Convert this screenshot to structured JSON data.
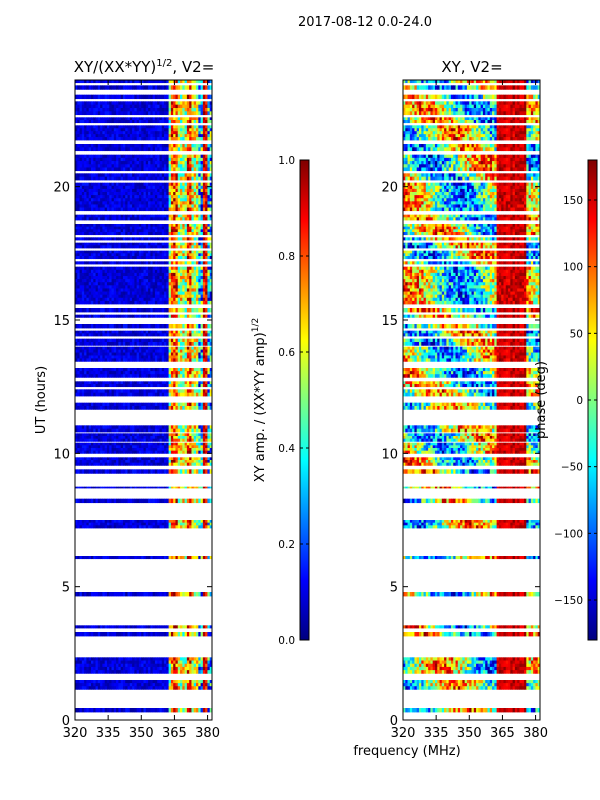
{
  "figure": {
    "suptitle": "2017-08-12 0.0-24.0",
    "shared_xlabel": "frequency (MHz)"
  },
  "chart_data": [
    {
      "type": "heatmap",
      "id": "amp",
      "title_main": "XY/(XX*YY)",
      "title_sup": "1/2",
      "title_tail": ", V2=",
      "ylabel": "UT (hours)",
      "xlim": [
        320,
        382
      ],
      "ylim": [
        0,
        24
      ],
      "xticks": [
        320,
        335,
        350,
        365,
        380
      ],
      "yticks": [
        0,
        5,
        10,
        15,
        20
      ],
      "background_value": 0.03,
      "band_value": 0.55,
      "colorbar": {
        "label_main": "XY amp. / (XX*YY amp)",
        "label_sup": "1/2",
        "range": [
          0.0,
          1.0
        ],
        "ticks": [
          "0.0",
          "0.2",
          "0.4",
          "0.6",
          "0.8",
          "1.0"
        ],
        "tick_values": [
          0.0,
          0.2,
          0.4,
          0.6,
          0.8,
          1.0
        ]
      }
    },
    {
      "type": "heatmap",
      "id": "phase",
      "title_main": "XY, V2=",
      "ylabel": "",
      "xlim": [
        320,
        382
      ],
      "ylim": [
        0,
        24
      ],
      "xticks": [
        320,
        335,
        350,
        365,
        380
      ],
      "yticks": [
        0,
        5,
        10,
        15,
        20
      ],
      "colorbar": {
        "label_main": "phase (deg)",
        "range": [
          -180,
          180
        ],
        "ticks": [
          "−150",
          "−100",
          "−50",
          "0",
          "50",
          "100",
          "150"
        ],
        "tick_values": [
          -150,
          -100,
          -50,
          0,
          50,
          100,
          150
        ]
      }
    }
  ],
  "data_rows_ut": [
    [
      0.3,
      0.45
    ],
    [
      1.15,
      1.5
    ],
    [
      1.75,
      2.35
    ],
    [
      3.15,
      3.3
    ],
    [
      3.45,
      3.55
    ],
    [
      4.65,
      4.8
    ],
    [
      6.05,
      6.15
    ],
    [
      7.2,
      7.5
    ],
    [
      8.15,
      8.3
    ],
    [
      8.7,
      8.75
    ],
    [
      9.25,
      9.4
    ],
    [
      9.55,
      9.85
    ],
    [
      10.0,
      10.4
    ],
    [
      10.45,
      10.75
    ],
    [
      10.8,
      11.05
    ],
    [
      11.65,
      11.9
    ],
    [
      12.15,
      12.4
    ],
    [
      12.5,
      12.7
    ],
    [
      12.85,
      13.2
    ],
    [
      13.45,
      14.0
    ],
    [
      14.05,
      14.3
    ],
    [
      14.4,
      14.6
    ],
    [
      14.7,
      14.85
    ],
    [
      15.1,
      15.2
    ],
    [
      15.3,
      15.45
    ],
    [
      15.6,
      17.0
    ],
    [
      17.1,
      17.2
    ],
    [
      17.3,
      17.6
    ],
    [
      17.7,
      17.9
    ],
    [
      18.0,
      18.1
    ],
    [
      18.2,
      18.6
    ],
    [
      18.75,
      18.95
    ],
    [
      19.1,
      20.15
    ],
    [
      20.25,
      20.5
    ],
    [
      20.6,
      21.2
    ],
    [
      21.35,
      21.6
    ],
    [
      21.75,
      22.3
    ],
    [
      22.4,
      22.6
    ],
    [
      22.7,
      23.2
    ],
    [
      23.3,
      23.45
    ],
    [
      23.65,
      23.8
    ],
    [
      23.9,
      24.0
    ]
  ]
}
